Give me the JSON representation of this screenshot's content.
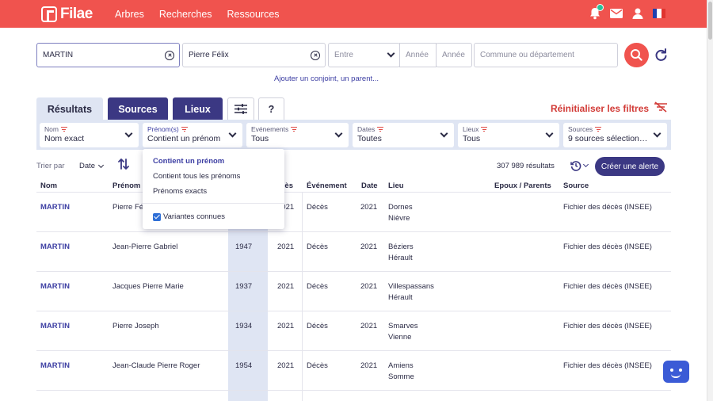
{
  "header": {
    "brand": "Filae",
    "nav": [
      "Arbres",
      "Recherches",
      "Ressources"
    ]
  },
  "search": {
    "surname_value": "MARTIN",
    "firstname_value": "Pierre Félix",
    "period_label": "Entre",
    "year_from_placeholder": "Année",
    "year_to_placeholder": "Année",
    "place_placeholder": "Commune ou département",
    "add_link": "Ajouter un conjoint, un parent..."
  },
  "tabs": [
    "Résultats",
    "Sources",
    "Lieux",
    "?"
  ],
  "reset_filters": "Réinitialiser les filtres",
  "filters": [
    {
      "label": "Nom",
      "value": "Nom exact"
    },
    {
      "label": "Prénom(s)",
      "value": "Contient un prénom"
    },
    {
      "label": "Evénements",
      "value": "Tous"
    },
    {
      "label": "Dates",
      "value": "Toutes"
    },
    {
      "label": "Lieux",
      "value": "Tous"
    },
    {
      "label": "Sources",
      "value": "9 sources sélectionn..."
    }
  ],
  "sort": {
    "label": "Trier par",
    "value": "Date"
  },
  "results": {
    "count": "307 989 résultats",
    "alert_button": "Créer une alerte"
  },
  "table": {
    "columns": [
      "Nom",
      "Prénom",
      "Décès",
      "Événement",
      "Date",
      "Lieu",
      "Epoux / Parents",
      "Source"
    ],
    "rows": [
      {
        "surname": "MARTIN",
        "firstname": "Pierre Félix",
        "birth": "",
        "death": "2021",
        "event": "Décès",
        "date": "2021",
        "place1": "Dornes",
        "place2": "Nièvre",
        "source": "Fichier des décès (INSEE)"
      },
      {
        "surname": "MARTIN",
        "firstname": "Jean-Pierre Gabriel",
        "birth": "1947",
        "death": "2021",
        "event": "Décès",
        "date": "2021",
        "place1": "Béziers",
        "place2": "Hérault",
        "source": "Fichier des décès (INSEE)"
      },
      {
        "surname": "MARTIN",
        "firstname": "Jacques Pierre Marie",
        "birth": "1937",
        "death": "2021",
        "event": "Décès",
        "date": "2021",
        "place1": "Villespassans",
        "place2": "Hérault",
        "source": "Fichier des décès (INSEE)"
      },
      {
        "surname": "MARTIN",
        "firstname": "Pierre Joseph",
        "birth": "1934",
        "death": "2021",
        "event": "Décès",
        "date": "2021",
        "place1": "Smarves",
        "place2": "Vienne",
        "source": "Fichier des décès (INSEE)"
      },
      {
        "surname": "MARTIN",
        "firstname": "Jean-Claude Pierre Roger",
        "birth": "1954",
        "death": "2021",
        "event": "Décès",
        "date": "2021",
        "place1": "Amiens",
        "place2": "Somme",
        "source": "Fichier des décès (INSEE)"
      }
    ]
  },
  "dropdown": {
    "options": [
      "Contient un prénom",
      "Contient tous les prénoms",
      "Prénoms exacts"
    ],
    "selected_index": 0,
    "checkbox_label": "Variantes connues",
    "checkbox_checked": true
  },
  "colors": {
    "brand_red": "#f0534e",
    "brand_navy": "#3b3883",
    "filter_bg": "#dfe5f3",
    "link_blue": "#3d3fa3"
  },
  "icons": [
    "bell-icon",
    "mail-icon",
    "user-icon",
    "france-flag-icon",
    "clear-icon",
    "chevron-down-icon",
    "search-icon",
    "reset-icon",
    "filter-settings-icon",
    "filter-off-icon",
    "sort-icon",
    "history-icon",
    "chat-icon"
  ]
}
